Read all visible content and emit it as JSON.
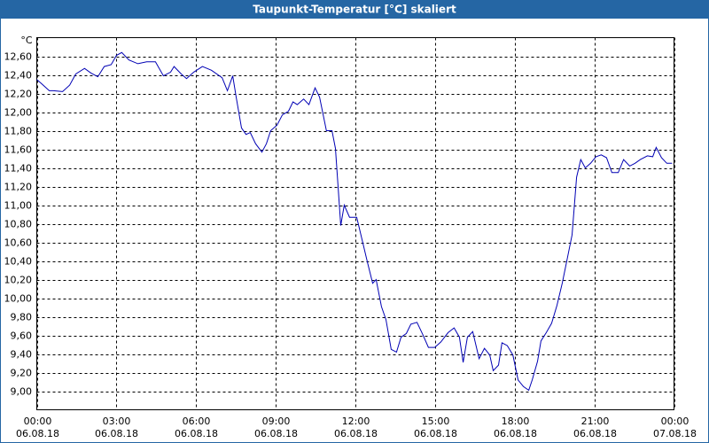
{
  "chart_data": {
    "type": "line",
    "title": "Taupunkt-Temperatur [°C] skaliert",
    "y_unit": "°C",
    "xlim": [
      0,
      24
    ],
    "ylim": [
      8.8,
      12.8
    ],
    "grid": true,
    "xticks": [
      {
        "value": 0,
        "label": "00:00",
        "date": "06.08.18"
      },
      {
        "value": 3,
        "label": "03:00",
        "date": "06.08.18"
      },
      {
        "value": 6,
        "label": "06:00",
        "date": "06.08.18"
      },
      {
        "value": 9,
        "label": "09:00",
        "date": "06.08.18"
      },
      {
        "value": 12,
        "label": "12:00",
        "date": "06.08.18"
      },
      {
        "value": 15,
        "label": "15:00",
        "date": "06.08.18"
      },
      {
        "value": 18,
        "label": "18:00",
        "date": "06.08.18"
      },
      {
        "value": 21,
        "label": "21:00",
        "date": "06.08.18"
      },
      {
        "value": 24,
        "label": "00:00",
        "date": "07.08.18"
      }
    ],
    "yticks": [
      {
        "value": 9.0,
        "label": "9,00"
      },
      {
        "value": 9.2,
        "label": "9,20"
      },
      {
        "value": 9.4,
        "label": "9,40"
      },
      {
        "value": 9.6,
        "label": "9,60"
      },
      {
        "value": 9.8,
        "label": "9,80"
      },
      {
        "value": 10.0,
        "label": "10,00"
      },
      {
        "value": 10.2,
        "label": "10,20"
      },
      {
        "value": 10.4,
        "label": "10,40"
      },
      {
        "value": 10.6,
        "label": "10,60"
      },
      {
        "value": 10.8,
        "label": "10,80"
      },
      {
        "value": 11.0,
        "label": "11,00"
      },
      {
        "value": 11.2,
        "label": "11,20"
      },
      {
        "value": 11.4,
        "label": "11,40"
      },
      {
        "value": 11.6,
        "label": "11,60"
      },
      {
        "value": 11.8,
        "label": "11,80"
      },
      {
        "value": 12.0,
        "label": "12,00"
      },
      {
        "value": 12.2,
        "label": "12,20"
      },
      {
        "value": 12.4,
        "label": "12,40"
      },
      {
        "value": 12.6,
        "label": "12,60"
      }
    ],
    "x": [
      0,
      0.2,
      0.47,
      0.63,
      0.97,
      1.24,
      1.47,
      1.8,
      2.04,
      2.3,
      2.54,
      2.8,
      3.0,
      3.2,
      3.47,
      3.81,
      4.14,
      4.47,
      4.77,
      5.04,
      5.17,
      5.44,
      5.64,
      5.91,
      6.24,
      6.58,
      6.98,
      7.18,
      7.38,
      7.51,
      7.71,
      7.88,
      8.04,
      8.24,
      8.48,
      8.65,
      8.81,
      9.05,
      9.25,
      9.48,
      9.65,
      9.81,
      10.05,
      10.25,
      10.48,
      10.65,
      10.91,
      11.12,
      11.25,
      11.45,
      11.58,
      11.78,
      12.05,
      12.25,
      12.45,
      12.65,
      12.78,
      12.98,
      13.15,
      13.35,
      13.55,
      13.72,
      13.92,
      14.09,
      14.32,
      14.52,
      14.75,
      14.99,
      15.22,
      15.49,
      15.72,
      15.92,
      16.06,
      16.22,
      16.42,
      16.66,
      16.86,
      17.06,
      17.19,
      17.39,
      17.52,
      17.72,
      17.93,
      18.13,
      18.33,
      18.53,
      18.66,
      18.86,
      18.99,
      19.19,
      19.39,
      19.59,
      19.79,
      19.99,
      20.16,
      20.33,
      20.49,
      20.66,
      20.86,
      21.06,
      21.26,
      21.46,
      21.66,
      21.9,
      22.1,
      22.33,
      22.53,
      22.73,
      23.0,
      23.2,
      23.33,
      23.53,
      23.73,
      23.93
    ],
    "series": [
      {
        "name": "Taupunkt-Temperatur",
        "color": "#0000b4",
        "values": [
          12.35,
          12.3,
          12.23,
          12.23,
          12.22,
          12.29,
          12.41,
          12.47,
          12.42,
          12.38,
          12.49,
          12.51,
          12.61,
          12.64,
          12.56,
          12.52,
          12.54,
          12.54,
          12.39,
          12.43,
          12.49,
          12.41,
          12.36,
          12.43,
          12.49,
          12.45,
          12.37,
          12.23,
          12.39,
          12.16,
          11.83,
          11.76,
          11.78,
          11.66,
          11.57,
          11.66,
          11.8,
          11.86,
          11.97,
          12.01,
          12.11,
          12.08,
          12.14,
          12.08,
          12.26,
          12.16,
          11.8,
          11.8,
          11.61,
          10.78,
          11.0,
          10.87,
          10.87,
          10.63,
          10.39,
          10.16,
          10.2,
          9.91,
          9.77,
          9.45,
          9.42,
          9.58,
          9.62,
          9.72,
          9.74,
          9.62,
          9.47,
          9.47,
          9.53,
          9.63,
          9.68,
          9.58,
          9.31,
          9.58,
          9.64,
          9.35,
          9.46,
          9.39,
          9.22,
          9.28,
          9.52,
          9.49,
          9.39,
          9.12,
          9.05,
          9.01,
          9.12,
          9.32,
          9.54,
          9.63,
          9.73,
          9.92,
          10.16,
          10.44,
          10.68,
          11.3,
          11.49,
          11.4,
          11.45,
          11.52,
          11.54,
          11.51,
          11.35,
          11.35,
          11.49,
          11.42,
          11.45,
          11.49,
          11.53,
          11.52,
          11.62,
          11.51,
          11.45,
          11.45
        ]
      }
    ]
  }
}
